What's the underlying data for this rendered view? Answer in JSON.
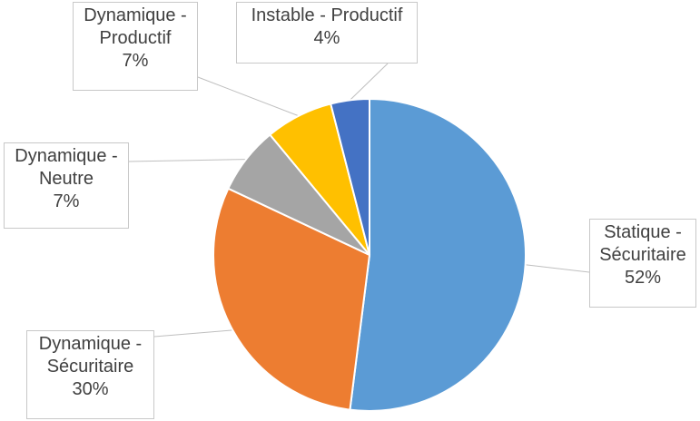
{
  "chart_data": {
    "type": "pie",
    "title": "",
    "slices": [
      {
        "label_lines": [
          "Statique -",
          "Sécuritaire"
        ],
        "percent_label": "52%",
        "value": 52,
        "color": "#5b9bd5"
      },
      {
        "label_lines": [
          "Dynamique -",
          "Sécuritaire"
        ],
        "percent_label": "30%",
        "value": 30,
        "color": "#ed7d31"
      },
      {
        "label_lines": [
          "Dynamique -",
          "Neutre"
        ],
        "percent_label": "7%",
        "value": 7,
        "color": "#a5a5a5"
      },
      {
        "label_lines": [
          "Dynamique -",
          "Productif"
        ],
        "percent_label": "7%",
        "value": 7,
        "color": "#ffc000"
      },
      {
        "label_lines": [
          "Instable - Productif"
        ],
        "percent_label": "4%",
        "value": 4,
        "color": "#4472c4"
      }
    ],
    "legend": "none",
    "data_labels": "callouts"
  }
}
